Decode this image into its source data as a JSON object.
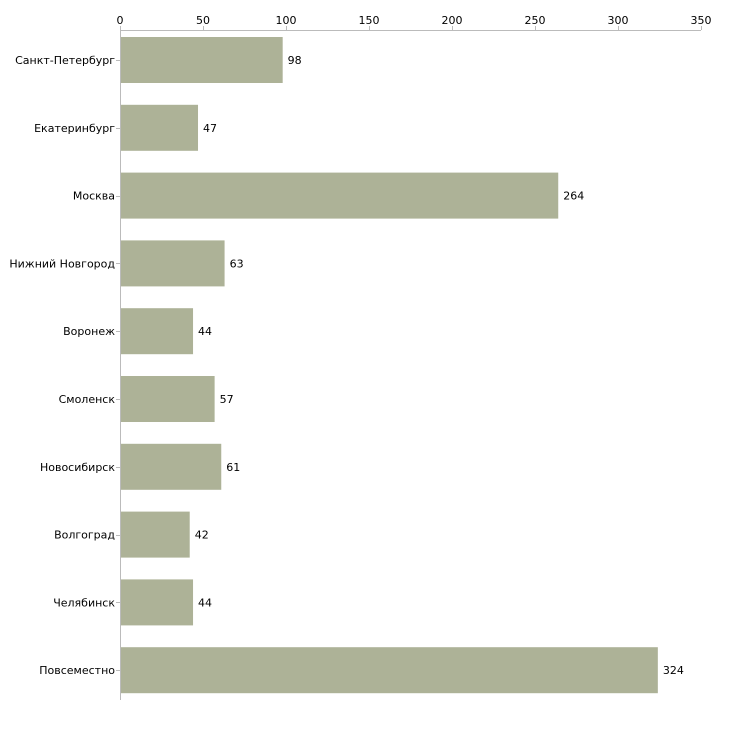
{
  "chart_data": {
    "type": "bar",
    "orientation": "horizontal",
    "title": "",
    "xlabel": "",
    "ylabel": "",
    "xlim": [
      0,
      350
    ],
    "xticks": [
      0,
      50,
      100,
      150,
      200,
      250,
      300,
      350
    ],
    "xtick_position": "top",
    "grid": false,
    "categories": [
      "Санкт-Петербург",
      "Екатеринбург",
      "Москва",
      "Нижний Новгород",
      "Воронеж",
      "Смоленск",
      "Новосибирск",
      "Волгоград",
      "Челябинск",
      "Повсеместно"
    ],
    "values": [
      98,
      47,
      264,
      63,
      44,
      57,
      61,
      42,
      44,
      324
    ],
    "bar_color": "#adb297",
    "axis_color": "#bbbbbb",
    "label_color": "#000000"
  }
}
